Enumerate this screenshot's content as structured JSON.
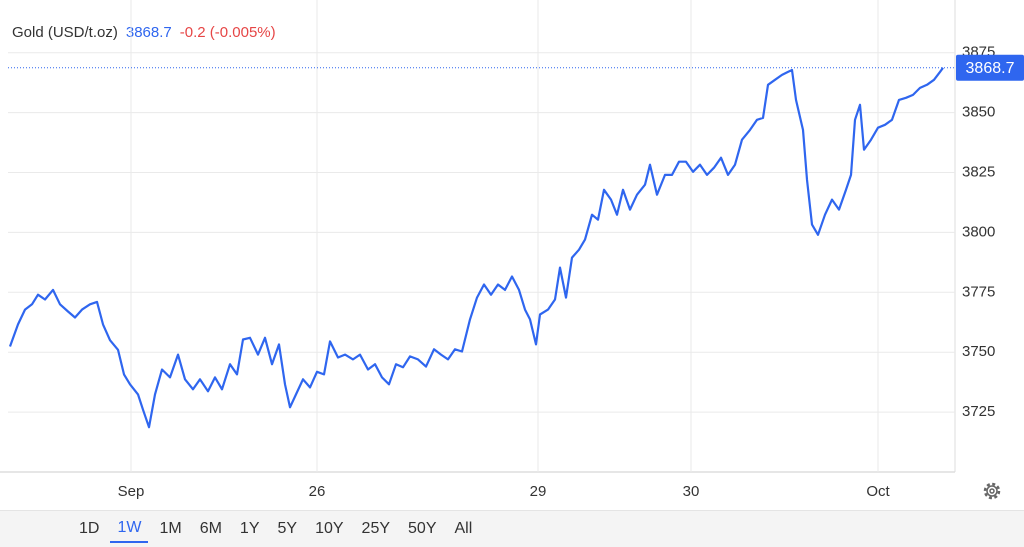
{
  "chart_data": {
    "type": "line",
    "title": "Gold (USD/t.oz)",
    "price": 3868.7,
    "change_label": "-0.2 (-0.005%)",
    "xlim": [
      8,
      955
    ],
    "ylim": [
      3700,
      3897
    ],
    "xticks": [
      {
        "value": 131,
        "label": "Sep"
      },
      {
        "value": 317,
        "label": "26"
      },
      {
        "value": 538,
        "label": "29"
      },
      {
        "value": 691,
        "label": "30"
      },
      {
        "value": 878,
        "label": "Oct"
      }
    ],
    "yticks": [
      3725,
      3750,
      3775,
      3800,
      3825,
      3850,
      3875
    ],
    "grid": true,
    "series": [
      {
        "name": "Gold",
        "color": "#2f66ef",
        "x": [
          10,
          18,
          25,
          32,
          38,
          45,
          53,
          60,
          68,
          75,
          82,
          90,
          97,
          103,
          110,
          118,
          124,
          130,
          138,
          143,
          149,
          155,
          162,
          170,
          178,
          185,
          193,
          200,
          208,
          215,
          222,
          230,
          237,
          243,
          250,
          258,
          265,
          272,
          279,
          285,
          290,
          296,
          303,
          310,
          317,
          324,
          330,
          338,
          345,
          353,
          360,
          368,
          375,
          382,
          389,
          396,
          403,
          410,
          418,
          426,
          434,
          441,
          448,
          455,
          462,
          470,
          477,
          484,
          491,
          498,
          505,
          512,
          519,
          525,
          530,
          536,
          540,
          548,
          555,
          560,
          566,
          572,
          579,
          585,
          592,
          598,
          604,
          611,
          617,
          623,
          630,
          637,
          645,
          650,
          657,
          665,
          672,
          679,
          686,
          693,
          700,
          707,
          714,
          721,
          728,
          735,
          742,
          750,
          757,
          763,
          768,
          775,
          782,
          788,
          792,
          796,
          803,
          807,
          812,
          818,
          825,
          832,
          839,
          846,
          851,
          855,
          860,
          864,
          871,
          878,
          885,
          892,
          899,
          906,
          913,
          920,
          927,
          934,
          940,
          943
        ],
        "values": [
          3752.4,
          3761.6,
          3767.8,
          3770,
          3774,
          3772,
          3776,
          3770,
          3767,
          3764.5,
          3767.8,
          3770,
          3771,
          3761.6,
          3755,
          3751,
          3740.75,
          3736.6,
          3732.4,
          3726,
          3718.7,
          3732.4,
          3742.8,
          3739.5,
          3749,
          3738.7,
          3734.5,
          3738.7,
          3733.7,
          3739.5,
          3734.5,
          3745,
          3740.75,
          3755.3,
          3756,
          3749,
          3756,
          3745,
          3753.25,
          3736.6,
          3727,
          3732.4,
          3738.7,
          3735.3,
          3741.8,
          3740.75,
          3754.5,
          3747.8,
          3749,
          3747,
          3749,
          3742.8,
          3745,
          3739.5,
          3736.6,
          3745,
          3743.7,
          3748.25,
          3747,
          3744,
          3751.2,
          3749,
          3747,
          3751.2,
          3750.3,
          3763.7,
          3772.8,
          3778.25,
          3774,
          3778.25,
          3776,
          3781.6,
          3776,
          3767.8,
          3763.7,
          3753.25,
          3765.75,
          3767.8,
          3772,
          3785.3,
          3772.8,
          3789.5,
          3792.8,
          3797,
          3807.4,
          3805.3,
          3817.8,
          3813.7,
          3807.4,
          3817.8,
          3809.5,
          3815.75,
          3819.9,
          3828.25,
          3815.75,
          3824,
          3824,
          3829.5,
          3829.5,
          3825.3,
          3828.25,
          3824,
          3827,
          3831.2,
          3824,
          3828.25,
          3838.7,
          3842.8,
          3847,
          3847.8,
          3861.6,
          3863.7,
          3865.75,
          3867,
          3867.8,
          3855.3,
          3842.8,
          3822,
          3803.25,
          3799,
          3807.4,
          3813.7,
          3809.5,
          3817.8,
          3824,
          3847,
          3853.25,
          3834.5,
          3838.7,
          3843.7,
          3844.9,
          3847,
          3855.3,
          3856.2,
          3857.4,
          3860.3,
          3861.6,
          3863.7,
          3867,
          3868.7
        ]
      }
    ],
    "ranges": [
      "1D",
      "1W",
      "1M",
      "6M",
      "1Y",
      "5Y",
      "10Y",
      "25Y",
      "50Y",
      "All"
    ],
    "active_range": 1
  }
}
